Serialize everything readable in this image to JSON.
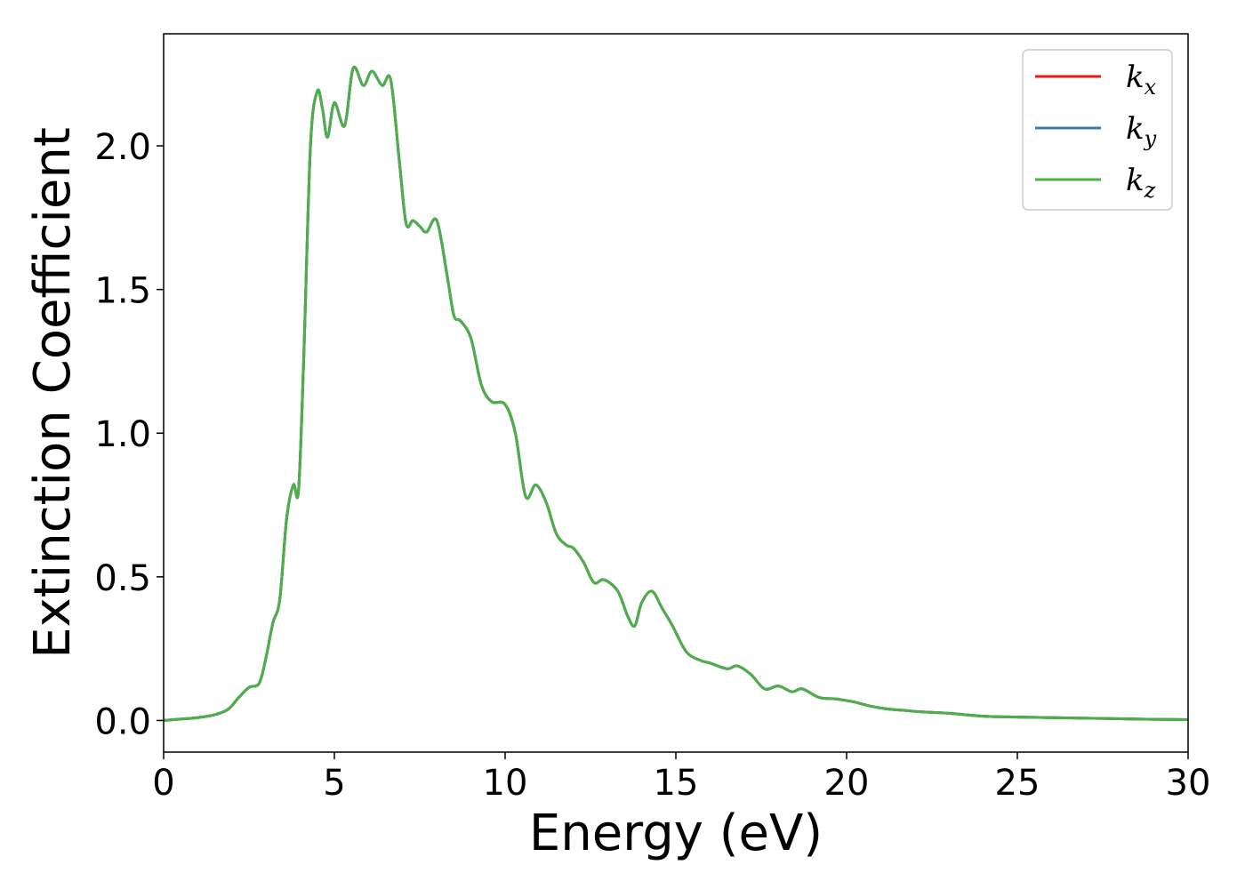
{
  "chart_data": {
    "type": "line",
    "title": "",
    "xlabel": "Energy (eV)",
    "ylabel": "Extinction Coefficient",
    "xlim": [
      0,
      30
    ],
    "ylim": [
      -0.11,
      2.39
    ],
    "xticks": [
      "0",
      "5",
      "10",
      "15",
      "20",
      "25",
      "30"
    ],
    "xtick_values": [
      0,
      5,
      10,
      15,
      20,
      25,
      30
    ],
    "yticks": [
      "0.0",
      "0.5",
      "1.0",
      "1.5",
      "2.0"
    ],
    "ytick_values": [
      0.0,
      0.5,
      1.0,
      1.5,
      2.0
    ],
    "grid": false,
    "legend_position": "top-right",
    "x": [
      0,
      0.5,
      1.0,
      1.5,
      1.9,
      2.2,
      2.5,
      2.8,
      3.0,
      3.2,
      3.4,
      3.6,
      3.8,
      3.95,
      4.1,
      4.3,
      4.5,
      4.65,
      4.8,
      5.0,
      5.3,
      5.55,
      5.85,
      6.1,
      6.4,
      6.65,
      6.9,
      7.1,
      7.3,
      7.5,
      7.7,
      8.0,
      8.3,
      8.5,
      8.7,
      9.0,
      9.3,
      9.6,
      10.0,
      10.3,
      10.6,
      10.9,
      11.2,
      11.5,
      11.8,
      12.0,
      12.3,
      12.6,
      12.9,
      13.3,
      13.6,
      13.8,
      14.0,
      14.3,
      14.6,
      14.9,
      15.3,
      15.7,
      16.0,
      16.5,
      16.8,
      17.2,
      17.6,
      18.0,
      18.4,
      18.7,
      19.2,
      19.7,
      20.2,
      20.7,
      21.2,
      21.7,
      22.2,
      23.0,
      24.0,
      25.0,
      26.0,
      27.0,
      28.0,
      29.0,
      30.0
    ],
    "series": [
      {
        "name": "k_x",
        "color": "#e41a1c",
        "y": [
          0.0,
          0.005,
          0.01,
          0.02,
          0.04,
          0.08,
          0.115,
          0.13,
          0.22,
          0.34,
          0.42,
          0.7,
          0.82,
          0.8,
          1.25,
          2.0,
          2.19,
          2.13,
          2.03,
          2.15,
          2.07,
          2.27,
          2.21,
          2.26,
          2.21,
          2.23,
          1.95,
          1.73,
          1.74,
          1.72,
          1.7,
          1.74,
          1.55,
          1.41,
          1.39,
          1.33,
          1.17,
          1.11,
          1.1,
          1.0,
          0.78,
          0.82,
          0.76,
          0.65,
          0.61,
          0.6,
          0.55,
          0.48,
          0.49,
          0.45,
          0.36,
          0.33,
          0.41,
          0.45,
          0.39,
          0.33,
          0.24,
          0.21,
          0.2,
          0.18,
          0.19,
          0.16,
          0.11,
          0.12,
          0.1,
          0.11,
          0.08,
          0.075,
          0.065,
          0.05,
          0.04,
          0.035,
          0.03,
          0.025,
          0.015,
          0.012,
          0.01,
          0.008,
          0.006,
          0.004,
          0.003
        ]
      },
      {
        "name": "k_y",
        "color": "#377eb8",
        "y": [
          0.0,
          0.005,
          0.01,
          0.02,
          0.04,
          0.08,
          0.115,
          0.13,
          0.22,
          0.34,
          0.42,
          0.7,
          0.82,
          0.8,
          1.25,
          2.0,
          2.19,
          2.13,
          2.03,
          2.15,
          2.07,
          2.27,
          2.21,
          2.26,
          2.21,
          2.23,
          1.95,
          1.73,
          1.74,
          1.72,
          1.7,
          1.74,
          1.55,
          1.41,
          1.39,
          1.33,
          1.17,
          1.11,
          1.1,
          1.0,
          0.78,
          0.82,
          0.76,
          0.65,
          0.61,
          0.6,
          0.55,
          0.48,
          0.49,
          0.45,
          0.36,
          0.33,
          0.41,
          0.45,
          0.39,
          0.33,
          0.24,
          0.21,
          0.2,
          0.18,
          0.19,
          0.16,
          0.11,
          0.12,
          0.1,
          0.11,
          0.08,
          0.075,
          0.065,
          0.05,
          0.04,
          0.035,
          0.03,
          0.025,
          0.015,
          0.012,
          0.01,
          0.008,
          0.006,
          0.004,
          0.003
        ]
      },
      {
        "name": "k_z",
        "color": "#4daf4a",
        "y": [
          0.0,
          0.005,
          0.01,
          0.02,
          0.04,
          0.08,
          0.115,
          0.13,
          0.22,
          0.34,
          0.42,
          0.7,
          0.82,
          0.8,
          1.25,
          2.0,
          2.19,
          2.13,
          2.03,
          2.15,
          2.07,
          2.27,
          2.21,
          2.26,
          2.21,
          2.23,
          1.95,
          1.73,
          1.74,
          1.72,
          1.7,
          1.74,
          1.55,
          1.41,
          1.39,
          1.33,
          1.17,
          1.11,
          1.1,
          1.0,
          0.78,
          0.82,
          0.76,
          0.65,
          0.61,
          0.6,
          0.55,
          0.48,
          0.49,
          0.45,
          0.36,
          0.33,
          0.41,
          0.45,
          0.39,
          0.33,
          0.24,
          0.21,
          0.2,
          0.18,
          0.19,
          0.16,
          0.11,
          0.12,
          0.1,
          0.11,
          0.08,
          0.075,
          0.065,
          0.05,
          0.04,
          0.035,
          0.03,
          0.025,
          0.015,
          0.012,
          0.01,
          0.008,
          0.006,
          0.004,
          0.003
        ]
      }
    ],
    "legend": [
      {
        "base": "k",
        "sub": "x",
        "color": "#e41a1c"
      },
      {
        "base": "k",
        "sub": "y",
        "color": "#377eb8"
      },
      {
        "base": "k",
        "sub": "z",
        "color": "#4daf4a"
      }
    ]
  }
}
